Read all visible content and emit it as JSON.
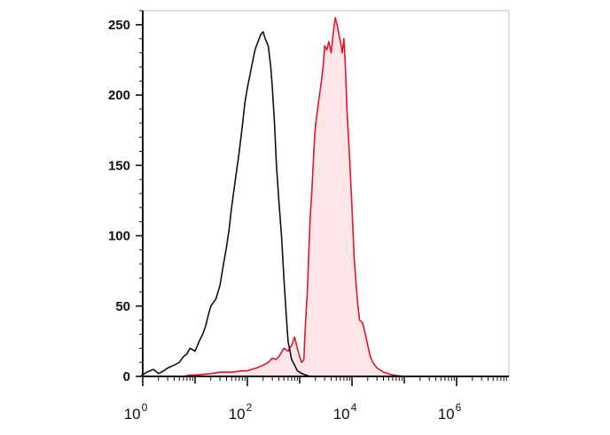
{
  "chart_data": {
    "type": "area",
    "x_scale": "log",
    "xlim": [
      1,
      10000000
    ],
    "ylim": [
      0,
      260
    ],
    "y_ticks": [
      0,
      50,
      100,
      150,
      200,
      250
    ],
    "x_ticks": [
      {
        "value": 1,
        "base": "10",
        "exp": "0"
      },
      {
        "value": 100,
        "base": "10",
        "exp": "2"
      },
      {
        "value": 10000,
        "base": "10",
        "exp": "4"
      },
      {
        "value": 1000000,
        "base": "10",
        "exp": "6"
      }
    ],
    "grid": false,
    "series": [
      {
        "color": "#111111",
        "fill": "none",
        "x": [
          0.9,
          1.2,
          1.6,
          2,
          2.5,
          3,
          4,
          5,
          6,
          7,
          8,
          10,
          12,
          14,
          16,
          18,
          20,
          25,
          30,
          35,
          40,
          45,
          50,
          60,
          70,
          80,
          90,
          100,
          120,
          140,
          160,
          180,
          200,
          220,
          250,
          280,
          300,
          330,
          360,
          400,
          450,
          500,
          550,
          600,
          700,
          800,
          900,
          1000,
          1100,
          1300,
          1600,
          2000,
          3000,
          5000,
          10000,
          100000,
          1000000,
          9000000
        ],
        "y": [
          0,
          3,
          5,
          2,
          4,
          6,
          8,
          10,
          14,
          16,
          20,
          18,
          25,
          30,
          36,
          44,
          50,
          55,
          65,
          80,
          92,
          105,
          120,
          142,
          160,
          178,
          195,
          205,
          220,
          232,
          238,
          243,
          245,
          240,
          235,
          220,
          205,
          180,
          150,
          125,
          100,
          70,
          45,
          25,
          12,
          8,
          4,
          3,
          2,
          1,
          0,
          0,
          0,
          0,
          0,
          0,
          0,
          0
        ]
      },
      {
        "color": "#e0162b",
        "fill": "#fde6e8",
        "x": [
          6,
          8,
          10,
          20,
          30,
          50,
          80,
          100,
          120,
          150,
          200,
          250,
          300,
          350,
          400,
          500,
          600,
          700,
          800,
          900,
          1000,
          1100,
          1200,
          1300,
          1400,
          1500,
          1600,
          1700,
          1900,
          2000,
          2200,
          2500,
          2800,
          3000,
          3300,
          3600,
          4000,
          4400,
          4800,
          5200,
          5700,
          6200,
          6500,
          7000,
          7500,
          8000,
          9000,
          10000,
          11000,
          12000,
          13000,
          14000,
          16000,
          18000,
          20000,
          22000,
          25000,
          30000,
          40000,
          60000,
          100000,
          1000000,
          9000000
        ],
        "y": [
          0,
          1,
          1,
          2,
          3,
          3,
          4,
          4,
          5,
          6,
          8,
          10,
          13,
          12,
          14,
          20,
          18,
          22,
          28,
          20,
          14,
          10,
          12,
          40,
          60,
          90,
          115,
          130,
          165,
          178,
          190,
          205,
          220,
          235,
          232,
          238,
          230,
          245,
          255,
          250,
          242,
          235,
          230,
          240,
          220,
          190,
          155,
          120,
          85,
          65,
          50,
          40,
          38,
          30,
          22,
          15,
          10,
          6,
          3,
          1,
          0,
          0,
          0
        ]
      }
    ]
  }
}
